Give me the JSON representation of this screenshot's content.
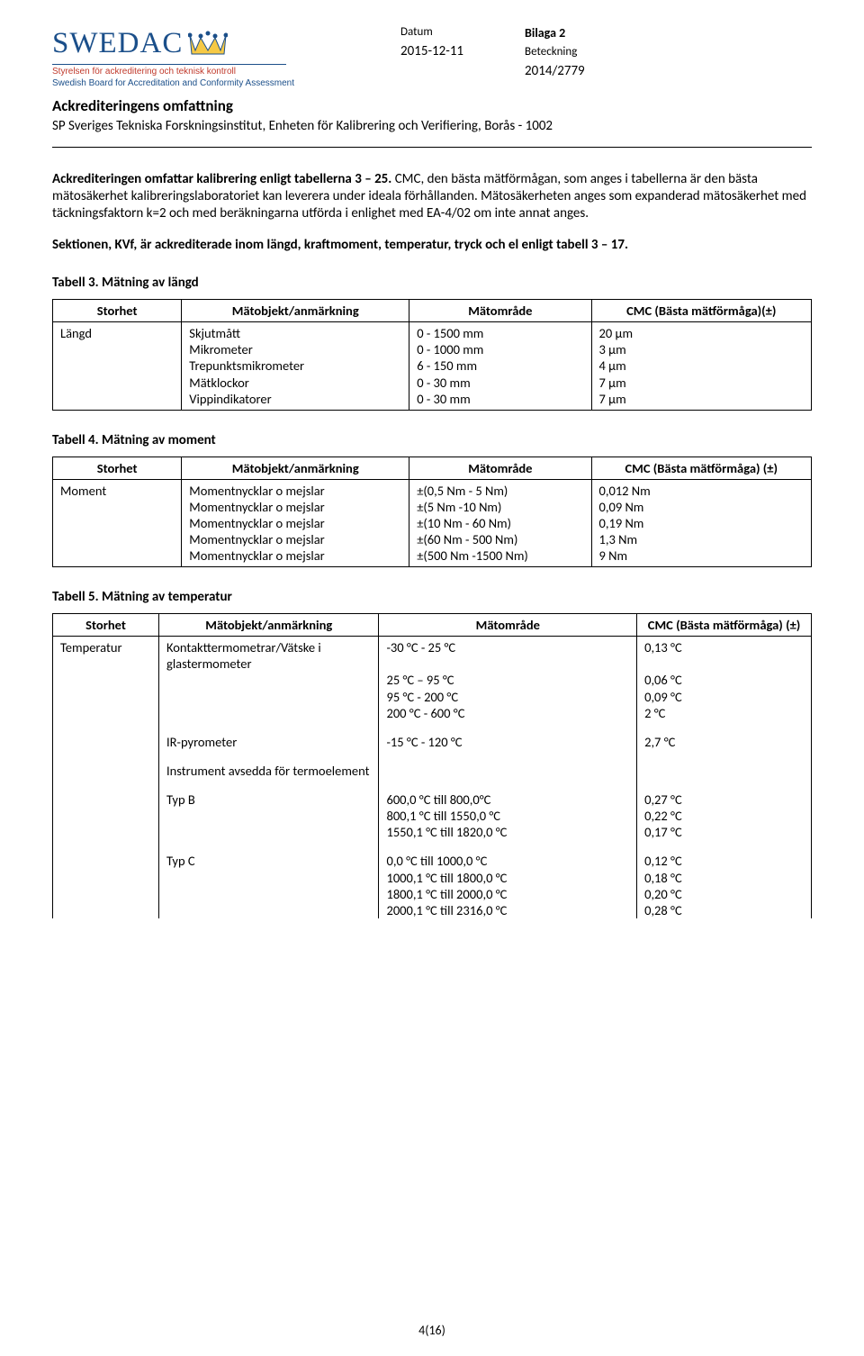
{
  "header": {
    "bilaga": "Bilaga 2",
    "datum_label": "Datum",
    "datum_value": "2015-12-11",
    "beteckning_label": "Beteckning",
    "beteckning_value": "2014/2779",
    "logo_text": "SWEDAC",
    "logo_sub_sv": "Styrelsen för ackreditering och teknisk kontroll",
    "logo_sub_en": "Swedish Board for Accreditation and Conformity Assessment"
  },
  "doc": {
    "title": "Ackrediteringens omfattning",
    "subtitle": "SP Sveriges Tekniska Forskningsinstitut, Enheten för Kalibrering och Verifiering, Borås - 1002",
    "intro_bold": "Ackrediteringen omfattar kalibrering enligt tabellerna 3 – 25.",
    "intro_rest": "CMC, den bästa mätförmågan, som anges i tabellerna är den bästa mätosäkerhet kalibreringslaboratoriet kan leverera under ideala förhållanden. Mätosäkerheten anges som expanderad mätosäkerhet med täckningsfaktorn k=2 och med beräkningarna utförda i enlighet med EA-4/02 om inte annat anges.",
    "section_kvf": "Sektionen, KVf, är ackrediterade inom längd, kraftmoment, temperatur, tryck och el enligt tabell 3 – 17."
  },
  "tables": {
    "t3": {
      "title": "Tabell 3. Mätning av längd",
      "headers": [
        "Storhet",
        "Mätobjekt/anmärkning",
        "Mätområde",
        "CMC (Bästa mätförmåga)(±)"
      ],
      "storhet": "Längd",
      "rows": [
        {
          "obj": "Skjutmått",
          "omr": "0 - 1500 mm",
          "cmc": "20 µm"
        },
        {
          "obj": "Mikrometer",
          "omr": "0 - 1000 mm",
          "cmc": "3 µm"
        },
        {
          "obj": "Trepunktsmikrometer",
          "omr": "6 - 150 mm",
          "cmc": "4 µm"
        },
        {
          "obj": "Mätklockor",
          "omr": "0 - 30 mm",
          "cmc": "7 µm"
        },
        {
          "obj": "Vippindikatorer",
          "omr": "0 - 30 mm",
          "cmc": "7 µm"
        }
      ]
    },
    "t4": {
      "title": "Tabell 4. Mätning av moment",
      "headers": [
        "Storhet",
        "Mätobjekt/anmärkning",
        "Mätområde",
        "CMC (Bästa mätförmåga) (±)"
      ],
      "storhet": "Moment",
      "rows": [
        {
          "obj": "Momentnycklar o mejslar",
          "omr": "±(0,5 Nm - 5 Nm)",
          "cmc": "0,012 Nm"
        },
        {
          "obj": "Momentnycklar o mejslar",
          "omr": "±(5 Nm -10 Nm)",
          "cmc": "0,09 Nm"
        },
        {
          "obj": "Momentnycklar o mejslar",
          "omr": "±(10 Nm - 60 Nm)",
          "cmc": "0,19 Nm"
        },
        {
          "obj": "Momentnycklar o mejslar",
          "omr": "±(60 Nm - 500 Nm)",
          "cmc": "1,3 Nm"
        },
        {
          "obj": "Momentnycklar o mejslar",
          "omr": "±(500 Nm -1500 Nm)",
          "cmc": "9 Nm"
        }
      ]
    },
    "t5": {
      "title": "Tabell 5. Mätning av temperatur",
      "headers": [
        "Storhet",
        "Mätobjekt/anmärkning",
        "Mätområde",
        "CMC (Bästa mätförmåga) (±)"
      ],
      "storhet": "Temperatur",
      "col_widths": [
        "14%",
        "29%",
        "34%",
        "23%"
      ],
      "groups": [
        {
          "obj": "Kontakttermometrar/Vätske i glastermometer",
          "rows": [
            {
              "omr": "-30 °C - 25 °C",
              "cmc": "0,13 °C"
            },
            {
              "omr": "25 °C – 95 °C",
              "cmc": "0,06 °C"
            },
            {
              "omr": "95 °C - 200 °C",
              "cmc": "0,09 °C"
            },
            {
              "omr": "200 °C - 600 °C",
              "cmc": "2 °C"
            }
          ]
        },
        {
          "obj": "IR-pyrometer",
          "rows": [
            {
              "omr": "-15 °C - 120 °C",
              "cmc": "2,7 °C"
            }
          ]
        },
        {
          "obj": "Instrument avsedda för termoelement",
          "rows": []
        },
        {
          "obj": "Typ B",
          "rows": [
            {
              "omr": "600,0 °C till 800,0°C",
              "cmc": "0,27 °C"
            },
            {
              "omr": "800,1 °C till 1550,0 °C",
              "cmc": "0,22 °C"
            },
            {
              "omr": "1550,1 °C till 1820,0 °C",
              "cmc": "0,17 °C"
            }
          ]
        },
        {
          "obj": "Typ C",
          "rows": [
            {
              "omr": "0,0 °C till 1000,0 °C",
              "cmc": "0,12 °C"
            },
            {
              "omr": "1000,1 °C till 1800,0 °C",
              "cmc": "0,18 °C"
            },
            {
              "omr": "1800,1 °C till 2000,0 °C",
              "cmc": "0,20 °C"
            },
            {
              "omr": "2000,1 °C till 2316,0 °C",
              "cmc": "0,28 °C"
            }
          ]
        }
      ]
    }
  },
  "footer": "4(16)"
}
